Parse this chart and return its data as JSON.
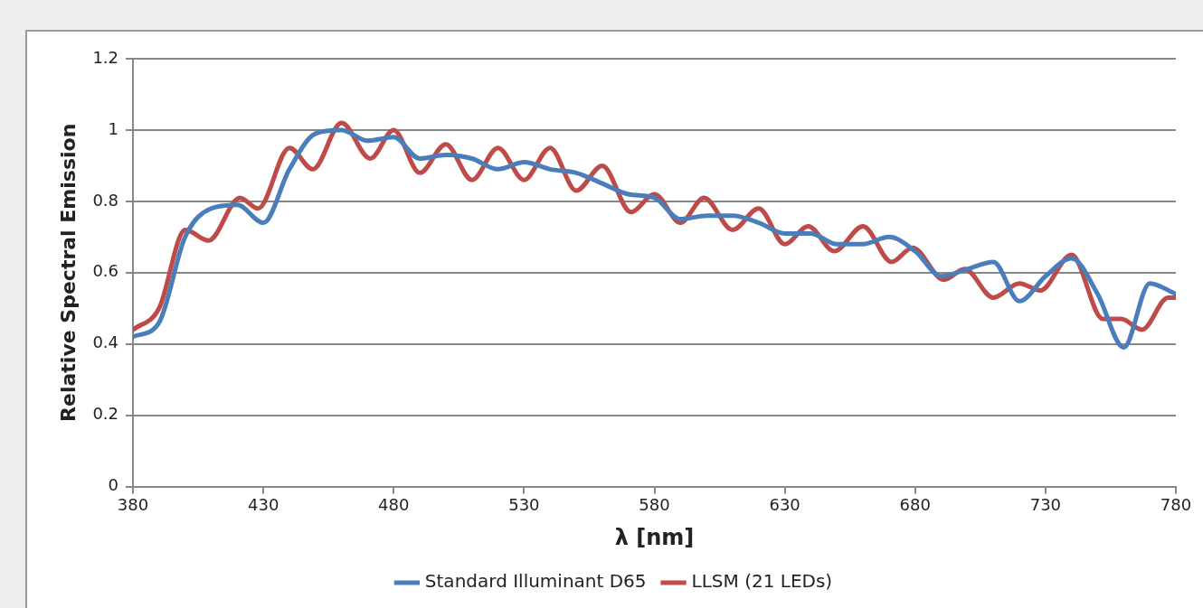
{
  "chart_data": {
    "type": "line",
    "xlabel": "λ [nm]",
    "ylabel": "Relative Spectral Emission",
    "xlim": [
      380,
      780
    ],
    "xticks": [
      380,
      430,
      480,
      530,
      580,
      630,
      680,
      730,
      780
    ],
    "ylim": [
      0,
      1.2
    ],
    "yticks": [
      0,
      0.2,
      0.4,
      0.6,
      0.8,
      1,
      1.2
    ],
    "grid": "y",
    "legend": "bottom",
    "marker": "none",
    "line_style": "solid",
    "series": [
      {
        "name": "Standard Illuminant D65",
        "color": "#4a7ebb",
        "x": [
          380,
          390,
          400,
          410,
          420,
          430,
          440,
          450,
          460,
          470,
          480,
          490,
          500,
          510,
          520,
          530,
          540,
          550,
          560,
          570,
          580,
          590,
          600,
          610,
          620,
          630,
          640,
          650,
          660,
          670,
          680,
          690,
          700,
          710,
          720,
          730,
          740,
          750,
          760,
          770,
          780
        ],
        "values": [
          0.42,
          0.46,
          0.7,
          0.78,
          0.79,
          0.74,
          0.89,
          0.99,
          1.0,
          0.97,
          0.98,
          0.92,
          0.93,
          0.92,
          0.89,
          0.91,
          0.89,
          0.88,
          0.85,
          0.82,
          0.81,
          0.75,
          0.76,
          0.76,
          0.74,
          0.71,
          0.71,
          0.68,
          0.68,
          0.7,
          0.66,
          0.59,
          0.61,
          0.63,
          0.52,
          0.59,
          0.64,
          0.54,
          0.39,
          0.57,
          0.54
        ]
      },
      {
        "name": "LLSM (21 LEDs)",
        "color": "#be4b48",
        "x": [
          380,
          390,
          400,
          409,
          421,
          428,
          440,
          449,
          460,
          471,
          480,
          490,
          500,
          510,
          520,
          530,
          540,
          550,
          560,
          571,
          580,
          590,
          599,
          610,
          620,
          630,
          639,
          649,
          660,
          671,
          679,
          691,
          699,
          710,
          720,
          728,
          740,
          752,
          759,
          767,
          777,
          780
        ],
        "values": [
          0.44,
          0.5,
          0.72,
          0.69,
          0.81,
          0.78,
          0.95,
          0.89,
          1.02,
          0.92,
          1.0,
          0.88,
          0.96,
          0.86,
          0.95,
          0.86,
          0.95,
          0.83,
          0.9,
          0.77,
          0.82,
          0.74,
          0.81,
          0.72,
          0.78,
          0.68,
          0.73,
          0.66,
          0.73,
          0.63,
          0.67,
          0.58,
          0.61,
          0.53,
          0.57,
          0.55,
          0.65,
          0.47,
          0.47,
          0.44,
          0.53,
          0.53
        ]
      }
    ]
  }
}
